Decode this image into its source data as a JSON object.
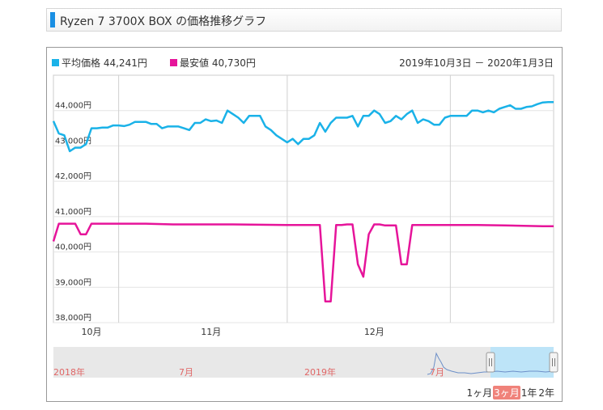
{
  "title": "Ryzen 7 3700X BOX の価格推移グラフ",
  "legend": {
    "avg_label": "平均価格",
    "avg_value": "44,241円",
    "min_label": "最安値",
    "min_value": "40,730円"
  },
  "period_text": "2019年10月3日 － 2020年1月3日",
  "colors": {
    "avg": "#1ab2e8",
    "min": "#e6149a",
    "accent": "#1a8fe3"
  },
  "navigator": {
    "labels": [
      {
        "text": "2018年",
        "key": "y2018"
      },
      {
        "text": "7月",
        "key": "m7a"
      },
      {
        "text": "2019年",
        "key": "y2019"
      },
      {
        "text": "7月",
        "key": "m7b"
      }
    ]
  },
  "range_buttons": [
    {
      "label": "1ヶ月",
      "active": false
    },
    {
      "label": "3ヶ月",
      "active": true
    },
    {
      "label": "1年",
      "active": false
    },
    {
      "label": "2年",
      "active": false
    }
  ],
  "chart_data": {
    "type": "line",
    "x_start": "2019-10-03",
    "x_end": "2020-01-03",
    "ylim": [
      38000,
      45000
    ],
    "y_ticks": [
      {
        "value": 38000,
        "label": "38,000円"
      },
      {
        "value": 39000,
        "label": "39,000円"
      },
      {
        "value": 40000,
        "label": "40,000円"
      },
      {
        "value": 41000,
        "label": "41,000円"
      },
      {
        "value": 42000,
        "label": "42,000円"
      },
      {
        "value": 43000,
        "label": "43,000円"
      },
      {
        "value": 44000,
        "label": "44,000円"
      }
    ],
    "x_ticks": [
      {
        "date": "2019-10-10",
        "label": "10月"
      },
      {
        "date": "2019-11-01",
        "label": "11月"
      },
      {
        "date": "2019-12-01",
        "label": "12月"
      }
    ],
    "gridlines_vertical": [
      "2019-10-15",
      "2019-11-15",
      "2019-12-15"
    ],
    "grid": true,
    "legend_position": "top-left",
    "series": [
      {
        "name": "平均価格",
        "points": [
          [
            "2019-10-03",
            43700
          ],
          [
            "2019-10-04",
            43350
          ],
          [
            "2019-10-05",
            43300
          ],
          [
            "2019-10-06",
            42850
          ],
          [
            "2019-10-07",
            42950
          ],
          [
            "2019-10-08",
            42950
          ],
          [
            "2019-10-09",
            43050
          ],
          [
            "2019-10-10",
            43500
          ],
          [
            "2019-10-11",
            43500
          ],
          [
            "2019-10-12",
            43520
          ],
          [
            "2019-10-13",
            43520
          ],
          [
            "2019-10-14",
            43580
          ],
          [
            "2019-10-15",
            43580
          ],
          [
            "2019-10-16",
            43560
          ],
          [
            "2019-10-17",
            43600
          ],
          [
            "2019-10-18",
            43680
          ],
          [
            "2019-10-19",
            43680
          ],
          [
            "2019-10-20",
            43680
          ],
          [
            "2019-10-21",
            43620
          ],
          [
            "2019-10-22",
            43620
          ],
          [
            "2019-10-23",
            43500
          ],
          [
            "2019-10-24",
            43550
          ],
          [
            "2019-10-25",
            43550
          ],
          [
            "2019-10-26",
            43550
          ],
          [
            "2019-10-27",
            43500
          ],
          [
            "2019-10-28",
            43450
          ],
          [
            "2019-10-29",
            43650
          ],
          [
            "2019-10-30",
            43650
          ],
          [
            "2019-10-31",
            43750
          ],
          [
            "2019-11-01",
            43700
          ],
          [
            "2019-11-02",
            43720
          ],
          [
            "2019-11-03",
            43650
          ],
          [
            "2019-11-04",
            44000
          ],
          [
            "2019-11-05",
            43900
          ],
          [
            "2019-11-06",
            43800
          ],
          [
            "2019-11-07",
            43650
          ],
          [
            "2019-11-08",
            43850
          ],
          [
            "2019-11-09",
            43850
          ],
          [
            "2019-11-10",
            43850
          ],
          [
            "2019-11-11",
            43550
          ],
          [
            "2019-11-12",
            43450
          ],
          [
            "2019-11-13",
            43300
          ],
          [
            "2019-11-14",
            43200
          ],
          [
            "2019-11-15",
            43100
          ],
          [
            "2019-11-16",
            43200
          ],
          [
            "2019-11-17",
            43050
          ],
          [
            "2019-11-18",
            43200
          ],
          [
            "2019-11-19",
            43200
          ],
          [
            "2019-11-20",
            43300
          ],
          [
            "2019-11-21",
            43650
          ],
          [
            "2019-11-22",
            43400
          ],
          [
            "2019-11-23",
            43650
          ],
          [
            "2019-11-24",
            43800
          ],
          [
            "2019-11-25",
            43800
          ],
          [
            "2019-11-26",
            43800
          ],
          [
            "2019-11-27",
            43850
          ],
          [
            "2019-11-28",
            43550
          ],
          [
            "2019-11-29",
            43850
          ],
          [
            "2019-11-30",
            43850
          ],
          [
            "2019-12-01",
            44000
          ],
          [
            "2019-12-02",
            43900
          ],
          [
            "2019-12-03",
            43650
          ],
          [
            "2019-12-04",
            43700
          ],
          [
            "2019-12-05",
            43850
          ],
          [
            "2019-12-06",
            43750
          ],
          [
            "2019-12-07",
            43900
          ],
          [
            "2019-12-08",
            44000
          ],
          [
            "2019-12-09",
            43650
          ],
          [
            "2019-12-10",
            43750
          ],
          [
            "2019-12-11",
            43700
          ],
          [
            "2019-12-12",
            43600
          ],
          [
            "2019-12-13",
            43600
          ],
          [
            "2019-12-14",
            43800
          ],
          [
            "2019-12-15",
            43850
          ],
          [
            "2019-12-16",
            43850
          ],
          [
            "2019-12-17",
            43850
          ],
          [
            "2019-12-18",
            43850
          ],
          [
            "2019-12-19",
            44000
          ],
          [
            "2019-12-20",
            44000
          ],
          [
            "2019-12-21",
            43950
          ],
          [
            "2019-12-22",
            44000
          ],
          [
            "2019-12-23",
            43950
          ],
          [
            "2019-12-24",
            44050
          ],
          [
            "2019-12-25",
            44100
          ],
          [
            "2019-12-26",
            44150
          ],
          [
            "2019-12-27",
            44050
          ],
          [
            "2019-12-28",
            44050
          ],
          [
            "2019-12-29",
            44100
          ],
          [
            "2019-12-30",
            44120
          ],
          [
            "2019-12-31",
            44180
          ],
          [
            "2020-01-01",
            44230
          ],
          [
            "2020-01-02",
            44240
          ],
          [
            "2020-01-03",
            44241
          ]
        ]
      },
      {
        "name": "最安値",
        "points": [
          [
            "2019-10-03",
            40300
          ],
          [
            "2019-10-04",
            40800
          ],
          [
            "2019-10-05",
            40800
          ],
          [
            "2019-10-06",
            40800
          ],
          [
            "2019-10-07",
            40800
          ],
          [
            "2019-10-08",
            40500
          ],
          [
            "2019-10-09",
            40500
          ],
          [
            "2019-10-10",
            40800
          ],
          [
            "2019-10-15",
            40800
          ],
          [
            "2019-10-20",
            40800
          ],
          [
            "2019-10-25",
            40780
          ],
          [
            "2019-10-31",
            40780
          ],
          [
            "2019-11-05",
            40780
          ],
          [
            "2019-11-10",
            40770
          ],
          [
            "2019-11-15",
            40760
          ],
          [
            "2019-11-20",
            40760
          ],
          [
            "2019-11-21",
            40760
          ],
          [
            "2019-11-22",
            38600
          ],
          [
            "2019-11-23",
            38600
          ],
          [
            "2019-11-24",
            40760
          ],
          [
            "2019-11-25",
            40760
          ],
          [
            "2019-11-26",
            40780
          ],
          [
            "2019-11-27",
            40780
          ],
          [
            "2019-11-28",
            39650
          ],
          [
            "2019-11-29",
            39300
          ],
          [
            "2019-11-30",
            40500
          ],
          [
            "2019-12-01",
            40780
          ],
          [
            "2019-12-02",
            40780
          ],
          [
            "2019-12-03",
            40750
          ],
          [
            "2019-12-04",
            40750
          ],
          [
            "2019-12-05",
            40750
          ],
          [
            "2019-12-06",
            39650
          ],
          [
            "2019-12-07",
            39650
          ],
          [
            "2019-12-08",
            40760
          ],
          [
            "2019-12-10",
            40760
          ],
          [
            "2019-12-15",
            40760
          ],
          [
            "2019-12-20",
            40760
          ],
          [
            "2019-12-25",
            40750
          ],
          [
            "2020-01-01",
            40730
          ],
          [
            "2020-01-03",
            40730
          ]
        ]
      }
    ]
  }
}
